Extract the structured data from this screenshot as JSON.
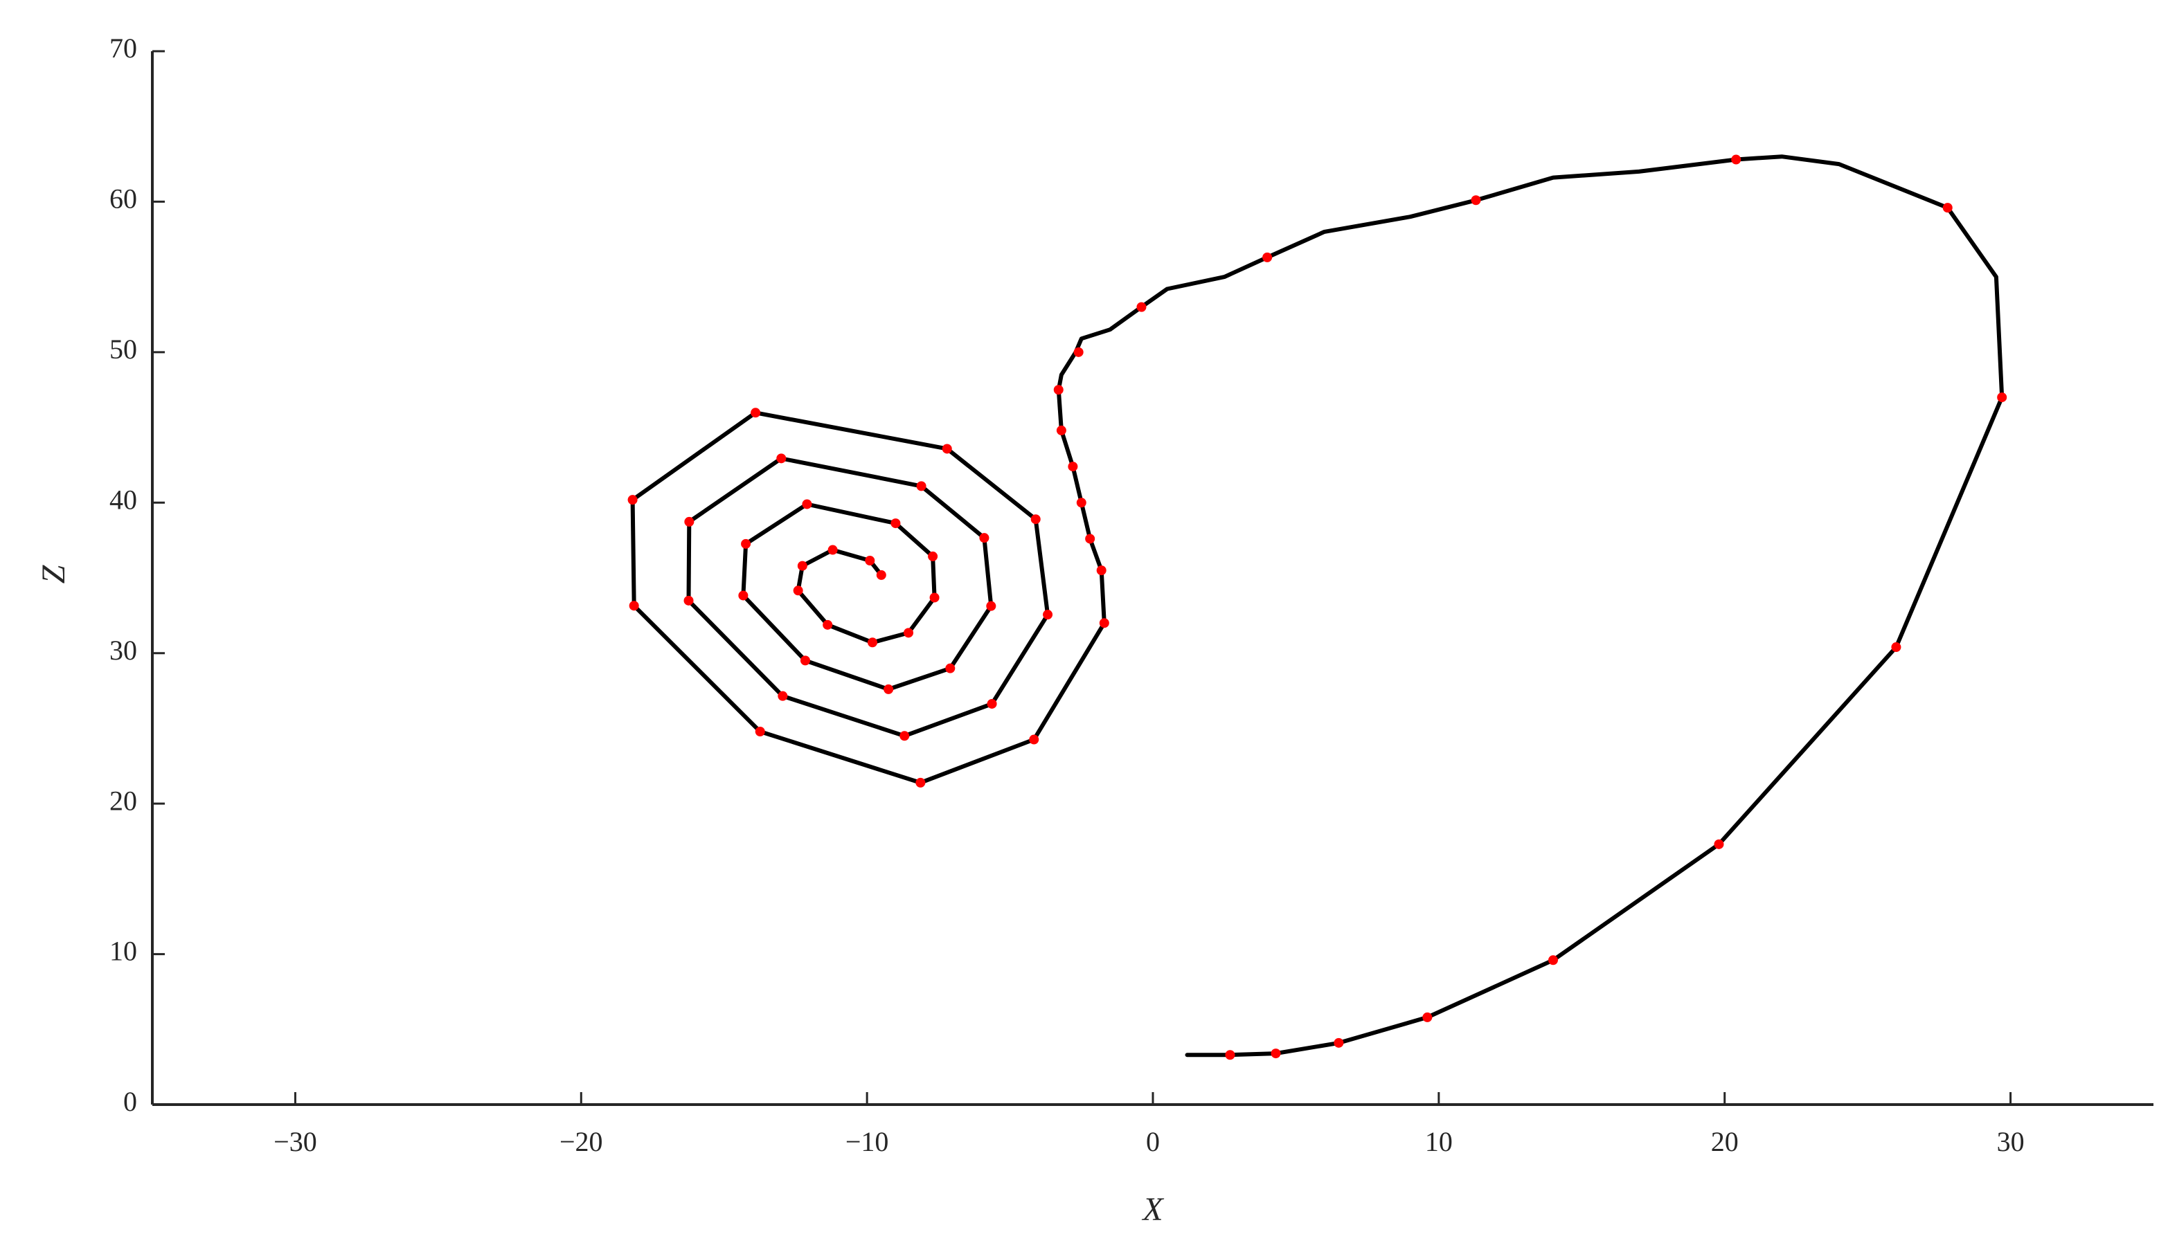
{
  "chart_data": {
    "type": "line",
    "xlabel": "X",
    "ylabel": "Z",
    "xlim": [
      -35,
      35
    ],
    "ylim": [
      0,
      70
    ],
    "xticks": [
      {
        "value": -30,
        "label": "−30"
      },
      {
        "value": -20,
        "label": "−20"
      },
      {
        "value": -10,
        "label": "−10"
      },
      0,
      10,
      20,
      30
    ],
    "yticks": [
      0,
      10,
      20,
      30,
      40,
      50,
      60,
      70
    ],
    "grid": false,
    "series": [
      {
        "color": "#000000",
        "style": "line",
        "x": [
          1.2,
          2.7,
          4.3,
          6.5,
          9.6,
          14,
          19.8,
          26,
          29.7,
          29.5,
          27.8,
          24,
          22,
          20.4,
          17,
          14,
          11.3,
          9,
          6,
          4,
          2.5,
          0.5,
          -0.4,
          -1.5,
          -2.5,
          -2.7,
          -3.2,
          -3.3,
          -3.2,
          -2.8,
          -2.5,
          -2.2,
          -1.8,
          -1.7,
          -4.16,
          -8.13,
          -13.74,
          -18.15,
          -18.2,
          -13.9,
          -7.2,
          -4.1,
          -3.68,
          -5.63,
          -8.69,
          -12.95,
          -16.24,
          -16.22,
          -13.0,
          -8.1,
          -5.9,
          -5.66,
          -7.09,
          -9.25,
          -12.16,
          -14.33,
          -14.24,
          -12.1,
          -9.0,
          -7.7,
          -7.64,
          -8.55,
          -9.81,
          -11.38,
          -12.41,
          -12.26,
          -11.2,
          -9.9,
          -9.5
        ],
        "values": [
          3.3,
          3.3,
          3.4,
          4.1,
          5.8,
          9.6,
          17.3,
          30.4,
          47,
          55,
          59.6,
          62.5,
          63,
          62.8,
          62,
          61.6,
          60.1,
          59,
          58,
          56.3,
          55,
          54.2,
          53,
          51.5,
          50.9,
          50,
          48.5,
          47.5,
          44.8,
          42.4,
          40,
          37.6,
          35.5,
          32.0,
          24.26,
          21.39,
          24.79,
          33.15,
          40.19,
          45.98,
          43.58,
          38.9,
          32.56,
          26.63,
          24.5,
          27.15,
          33.49,
          38.73,
          42.94,
          41.1,
          37.66,
          33.13,
          28.99,
          27.6,
          29.51,
          33.83,
          37.26,
          39.9,
          38.63,
          36.43,
          33.69,
          31.35,
          30.71,
          31.88,
          34.16,
          35.8,
          36.86,
          36.15,
          35.19
        ]
      },
      {
        "color": "#ff0000",
        "style": "markers",
        "x": [
          2.7,
          4.3,
          6.5,
          9.6,
          14,
          19.8,
          26,
          29.7,
          27.8,
          20.4,
          11.3,
          4,
          -0.4,
          -2.6,
          -3.3,
          -3.2,
          -2.8,
          -2.5,
          -2.2,
          -1.8,
          -1.7,
          -4.16,
          -8.13,
          -13.74,
          -18.15,
          -18.2,
          -13.9,
          -7.2,
          -4.1,
          -3.68,
          -5.63,
          -8.69,
          -12.95,
          -16.24,
          -16.22,
          -13.0,
          -8.1,
          -5.9,
          -5.66,
          -7.09,
          -9.25,
          -12.16,
          -14.33,
          -14.24,
          -12.1,
          -9.0,
          -7.7,
          -7.64,
          -8.55,
          -9.81,
          -11.38,
          -12.41,
          -12.26,
          -11.2,
          -9.9,
          -9.5
        ],
        "values": [
          3.3,
          3.4,
          4.1,
          5.8,
          9.6,
          17.3,
          30.4,
          47,
          59.6,
          62.8,
          60.1,
          56.3,
          53,
          50,
          47.5,
          44.8,
          42.4,
          40,
          37.6,
          35.5,
          32.0,
          24.26,
          21.39,
          24.79,
          33.15,
          40.19,
          45.98,
          43.58,
          38.9,
          32.56,
          26.63,
          24.5,
          27.15,
          33.49,
          38.73,
          42.94,
          41.1,
          37.66,
          33.13,
          28.99,
          27.6,
          29.51,
          33.83,
          37.26,
          39.9,
          38.63,
          36.43,
          33.69,
          31.35,
          30.71,
          31.88,
          34.16,
          35.8,
          36.86,
          36.15,
          35.19
        ]
      }
    ]
  }
}
